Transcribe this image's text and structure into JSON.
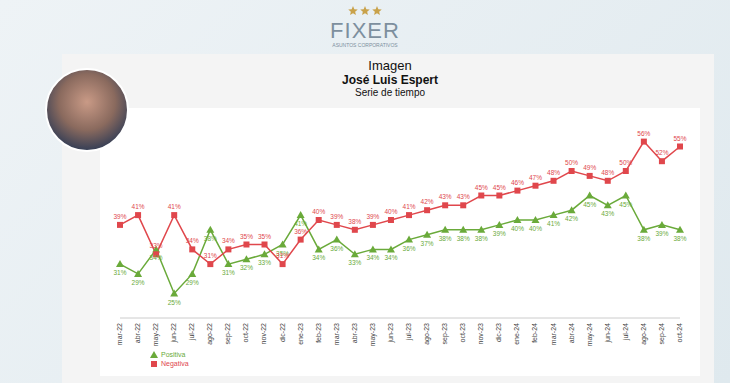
{
  "header": {
    "brand": "FIXER",
    "tagline": "ASUNTOS CORPORATIVOS"
  },
  "chart_data": {
    "type": "line",
    "title": "Imagen",
    "subtitle": "José Luis Espert",
    "caption": "Serie de tiempo",
    "categories": [
      "mar-22",
      "abr-22",
      "may-22",
      "jun-22",
      "jul-22",
      "ago-22",
      "sep-22",
      "oct-22",
      "nov-22",
      "dic-22",
      "ene-23",
      "feb-23",
      "mar-23",
      "abr-23",
      "may-23",
      "jun-23",
      "jul-23",
      "ago-23",
      "sep-23",
      "oct-23",
      "nov-23",
      "dic-23",
      "ene-24",
      "feb-24",
      "mar-24",
      "abr-24",
      "may-24",
      "jun-24",
      "jul-24",
      "ago-24",
      "sep-24",
      "oct-24"
    ],
    "series": [
      {
        "name": "Positiva",
        "color": "#6aaa3a",
        "marker": "triangle",
        "values": [
          31,
          29,
          34,
          25,
          29,
          38,
          31,
          32,
          33,
          35,
          41,
          34,
          36,
          33,
          34,
          34,
          36,
          37,
          38,
          38,
          38,
          39,
          40,
          40,
          41,
          42,
          45,
          43,
          45,
          38,
          39,
          38
        ],
        "value_labels": [
          "31%",
          "29%",
          "34%",
          "25%",
          "29%",
          "38%",
          "31%",
          "32%",
          "33%",
          "35%",
          "41%",
          "34%",
          "36%",
          "33%",
          "34%",
          "34%",
          "36%",
          "37%",
          "38%",
          "38%",
          "38%",
          "39%",
          "40%",
          "40%",
          "41%",
          "42%",
          "45%",
          "43%",
          "45%",
          "38%",
          "39%",
          "38%"
        ]
      },
      {
        "name": "Negativa",
        "color": "#e0474c",
        "marker": "square",
        "values": [
          39,
          41,
          33,
          41,
          34,
          31,
          34,
          35,
          35,
          31,
          36,
          40,
          39,
          38,
          39,
          40,
          41,
          42,
          43,
          43,
          45,
          45,
          46,
          47,
          48,
          50,
          49,
          48,
          50,
          56,
          52,
          55
        ],
        "value_labels": [
          "39%",
          "41%",
          "33%",
          "41%",
          "34%",
          "31%",
          "34%",
          "35%",
          "35%",
          "31%",
          "36%",
          "40%",
          "39%",
          "38%",
          "39%",
          "40%",
          "41%",
          "42%",
          "43%",
          "43%",
          "45%",
          "45%",
          "46%",
          "47%",
          "48%",
          "50%",
          "49%",
          "48%",
          "50%",
          "56%",
          "52%",
          "55%"
        ]
      }
    ],
    "ylim": [
      20,
      60
    ],
    "tick_labels": "x",
    "grid": false,
    "data_labels": true,
    "legend": "bottom-left"
  }
}
